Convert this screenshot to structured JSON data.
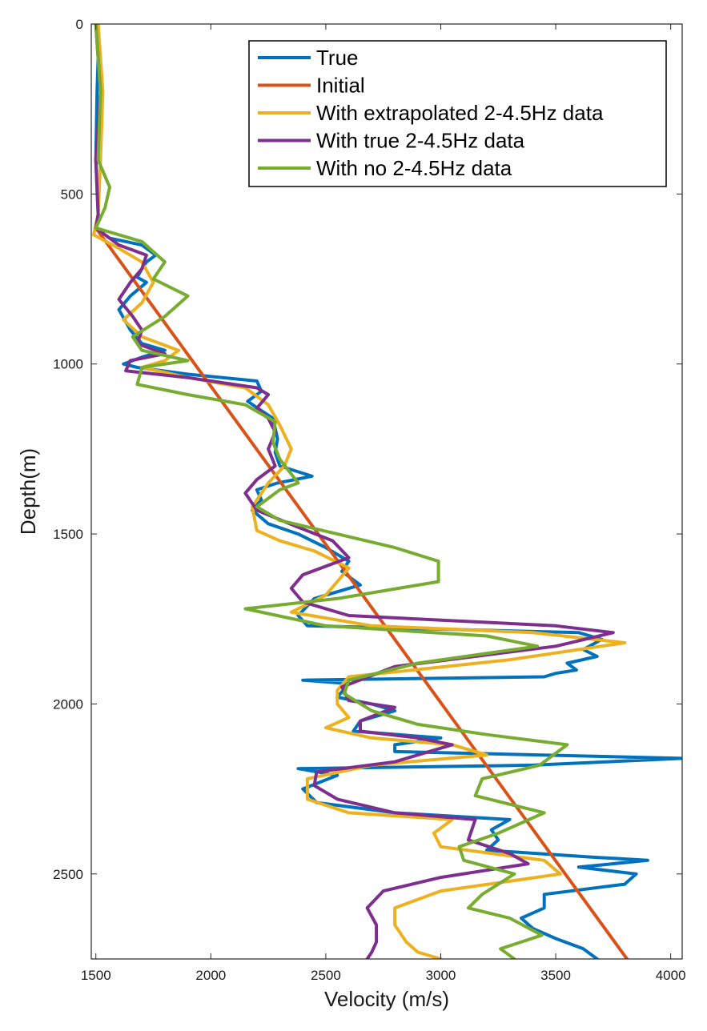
{
  "chart_data": {
    "type": "line",
    "title": "",
    "xlabel": "Velocity (m/s)",
    "ylabel": "Depth(m)",
    "xlim": [
      1480,
      4050
    ],
    "ylim": [
      0,
      2750
    ],
    "y_reversed": true,
    "x_ticks": [
      1500,
      2000,
      2500,
      3000,
      3500,
      4000
    ],
    "y_ticks": [
      0,
      500,
      1000,
      1500,
      2000,
      2500
    ],
    "grid": false,
    "legend_position": "top-right",
    "series": [
      {
        "name": "True",
        "color": "#0072BD",
        "points": [
          [
            1500,
            0
          ],
          [
            1510,
            100
          ],
          [
            1505,
            200
          ],
          [
            1500,
            400
          ],
          [
            1510,
            560
          ],
          [
            1500,
            600
          ],
          [
            1560,
            630
          ],
          [
            1700,
            650
          ],
          [
            1760,
            680
          ],
          [
            1720,
            700
          ],
          [
            1700,
            720
          ],
          [
            1680,
            745
          ],
          [
            1720,
            760
          ],
          [
            1650,
            800
          ],
          [
            1600,
            840
          ],
          [
            1650,
            900
          ],
          [
            1700,
            940
          ],
          [
            1800,
            960
          ],
          [
            1700,
            980
          ],
          [
            1620,
            1000
          ],
          [
            1680,
            1010
          ],
          [
            1900,
            1030
          ],
          [
            2200,
            1050
          ],
          [
            2220,
            1080
          ],
          [
            2160,
            1110
          ],
          [
            2270,
            1160
          ],
          [
            2290,
            1220
          ],
          [
            2280,
            1260
          ],
          [
            2300,
            1300
          ],
          [
            2440,
            1330
          ],
          [
            2290,
            1350
          ],
          [
            2200,
            1370
          ],
          [
            2220,
            1400
          ],
          [
            2180,
            1430
          ],
          [
            2250,
            1470
          ],
          [
            2380,
            1500
          ],
          [
            2500,
            1540
          ],
          [
            2600,
            1580
          ],
          [
            2570,
            1610
          ],
          [
            2650,
            1650
          ],
          [
            2450,
            1690
          ],
          [
            2380,
            1740
          ],
          [
            2420,
            1770
          ],
          [
            3600,
            1790
          ],
          [
            3700,
            1810
          ],
          [
            3620,
            1840
          ],
          [
            3680,
            1860
          ],
          [
            3550,
            1880
          ],
          [
            3590,
            1900
          ],
          [
            3500,
            1910
          ],
          [
            3450,
            1920
          ],
          [
            2400,
            1930
          ],
          [
            2600,
            1940
          ],
          [
            2550,
            1980
          ],
          [
            2700,
            2000
          ],
          [
            2800,
            2020
          ],
          [
            2650,
            2050
          ],
          [
            2620,
            2080
          ],
          [
            3000,
            2100
          ],
          [
            2800,
            2120
          ],
          [
            2800,
            2140
          ],
          [
            4050,
            2160
          ],
          [
            3400,
            2180
          ],
          [
            2380,
            2190
          ],
          [
            2550,
            2210
          ],
          [
            2400,
            2250
          ],
          [
            2460,
            2290
          ],
          [
            2800,
            2320
          ],
          [
            3050,
            2330
          ],
          [
            3300,
            2340
          ],
          [
            3220,
            2370
          ],
          [
            3250,
            2400
          ],
          [
            3200,
            2430
          ],
          [
            3650,
            2450
          ],
          [
            3900,
            2460
          ],
          [
            3600,
            2480
          ],
          [
            3850,
            2500
          ],
          [
            3800,
            2530
          ],
          [
            3450,
            2560
          ],
          [
            3450,
            2600
          ],
          [
            3350,
            2630
          ],
          [
            3400,
            2660
          ],
          [
            3500,
            2690
          ],
          [
            3620,
            2720
          ],
          [
            3680,
            2750
          ]
        ]
      },
      {
        "name": "Initial",
        "color": "#D95319",
        "points": [
          [
            1500,
            600
          ],
          [
            3810,
            2750
          ]
        ]
      },
      {
        "name": "With extrapolated 2-4.5Hz data",
        "color": "#EDB120",
        "points": [
          [
            1510,
            0
          ],
          [
            1530,
            200
          ],
          [
            1520,
            400
          ],
          [
            1510,
            560
          ],
          [
            1490,
            620
          ],
          [
            1600,
            660
          ],
          [
            1700,
            700
          ],
          [
            1750,
            760
          ],
          [
            1700,
            820
          ],
          [
            1620,
            870
          ],
          [
            1700,
            920
          ],
          [
            1860,
            960
          ],
          [
            1800,
            990
          ],
          [
            1700,
            1010
          ],
          [
            1900,
            1040
          ],
          [
            2150,
            1070
          ],
          [
            2250,
            1120
          ],
          [
            2300,
            1180
          ],
          [
            2350,
            1250
          ],
          [
            2320,
            1300
          ],
          [
            2250,
            1350
          ],
          [
            2180,
            1420
          ],
          [
            2200,
            1490
          ],
          [
            2300,
            1520
          ],
          [
            2450,
            1550
          ],
          [
            2600,
            1600
          ],
          [
            2500,
            1680
          ],
          [
            2350,
            1730
          ],
          [
            2700,
            1770
          ],
          [
            3400,
            1790
          ],
          [
            3800,
            1820
          ],
          [
            3300,
            1870
          ],
          [
            2600,
            1920
          ],
          [
            2550,
            1960
          ],
          [
            2550,
            2000
          ],
          [
            2600,
            2040
          ],
          [
            2500,
            2070
          ],
          [
            2700,
            2100
          ],
          [
            3050,
            2120
          ],
          [
            3200,
            2150
          ],
          [
            2700,
            2180
          ],
          [
            2420,
            2220
          ],
          [
            2420,
            2280
          ],
          [
            2600,
            2320
          ],
          [
            3050,
            2340
          ],
          [
            2970,
            2380
          ],
          [
            3000,
            2420
          ],
          [
            3450,
            2460
          ],
          [
            3520,
            2500
          ],
          [
            3000,
            2550
          ],
          [
            2800,
            2600
          ],
          [
            2800,
            2650
          ],
          [
            2850,
            2700
          ],
          [
            2900,
            2730
          ],
          [
            3000,
            2750
          ]
        ]
      },
      {
        "name": "With true 2-4.5Hz data",
        "color": "#7E2F8E",
        "points": [
          [
            1500,
            0
          ],
          [
            1520,
            200
          ],
          [
            1500,
            400
          ],
          [
            1510,
            560
          ],
          [
            1500,
            600
          ],
          [
            1600,
            650
          ],
          [
            1720,
            680
          ],
          [
            1700,
            720
          ],
          [
            1650,
            760
          ],
          [
            1600,
            810
          ],
          [
            1660,
            860
          ],
          [
            1700,
            900
          ],
          [
            1680,
            940
          ],
          [
            1800,
            970
          ],
          [
            1650,
            990
          ],
          [
            1630,
            1020
          ],
          [
            1900,
            1040
          ],
          [
            2200,
            1070
          ],
          [
            2250,
            1090
          ],
          [
            2200,
            1130
          ],
          [
            2250,
            1160
          ],
          [
            2280,
            1200
          ],
          [
            2250,
            1250
          ],
          [
            2280,
            1300
          ],
          [
            2200,
            1340
          ],
          [
            2150,
            1380
          ],
          [
            2200,
            1430
          ],
          [
            2380,
            1480
          ],
          [
            2530,
            1520
          ],
          [
            2600,
            1570
          ],
          [
            2400,
            1620
          ],
          [
            2350,
            1660
          ],
          [
            2400,
            1700
          ],
          [
            2600,
            1740
          ],
          [
            3500,
            1770
          ],
          [
            3750,
            1790
          ],
          [
            3500,
            1830
          ],
          [
            2800,
            1890
          ],
          [
            2570,
            1950
          ],
          [
            2600,
            1990
          ],
          [
            2800,
            2010
          ],
          [
            2650,
            2050
          ],
          [
            2650,
            2080
          ],
          [
            2900,
            2100
          ],
          [
            3050,
            2120
          ],
          [
            2800,
            2170
          ],
          [
            2460,
            2200
          ],
          [
            2450,
            2240
          ],
          [
            2550,
            2280
          ],
          [
            2800,
            2320
          ],
          [
            3150,
            2340
          ],
          [
            3120,
            2400
          ],
          [
            3300,
            2440
          ],
          [
            3380,
            2470
          ],
          [
            3000,
            2510
          ],
          [
            2750,
            2550
          ],
          [
            2680,
            2600
          ],
          [
            2720,
            2650
          ],
          [
            2720,
            2700
          ],
          [
            2700,
            2730
          ],
          [
            2680,
            2750
          ]
        ]
      },
      {
        "name": "With no 2-4.5Hz data",
        "color": "#77AC30",
        "points": [
          [
            1500,
            0
          ],
          [
            1520,
            200
          ],
          [
            1510,
            400
          ],
          [
            1560,
            480
          ],
          [
            1540,
            540
          ],
          [
            1500,
            600
          ],
          [
            1700,
            640
          ],
          [
            1800,
            700
          ],
          [
            1750,
            750
          ],
          [
            1900,
            800
          ],
          [
            1800,
            860
          ],
          [
            1660,
            920
          ],
          [
            1700,
            960
          ],
          [
            1900,
            990
          ],
          [
            1700,
            1010
          ],
          [
            1680,
            1060
          ],
          [
            1900,
            1090
          ],
          [
            2150,
            1120
          ],
          [
            2280,
            1170
          ],
          [
            2270,
            1230
          ],
          [
            2300,
            1280
          ],
          [
            2380,
            1350
          ],
          [
            2300,
            1370
          ],
          [
            2200,
            1420
          ],
          [
            2300,
            1460
          ],
          [
            2550,
            1500
          ],
          [
            2800,
            1540
          ],
          [
            2990,
            1580
          ],
          [
            2990,
            1640
          ],
          [
            2550,
            1690
          ],
          [
            2150,
            1720
          ],
          [
            2500,
            1770
          ],
          [
            3200,
            1800
          ],
          [
            3420,
            1830
          ],
          [
            2900,
            1880
          ],
          [
            2600,
            1930
          ],
          [
            2580,
            1970
          ],
          [
            2700,
            2020
          ],
          [
            2900,
            2060
          ],
          [
            3200,
            2090
          ],
          [
            3550,
            2120
          ],
          [
            3430,
            2180
          ],
          [
            3180,
            2220
          ],
          [
            3150,
            2270
          ],
          [
            3450,
            2320
          ],
          [
            3250,
            2380
          ],
          [
            3080,
            2420
          ],
          [
            3100,
            2460
          ],
          [
            3320,
            2500
          ],
          [
            3180,
            2560
          ],
          [
            3120,
            2600
          ],
          [
            3300,
            2630
          ],
          [
            3440,
            2680
          ],
          [
            3260,
            2720
          ],
          [
            3320,
            2750
          ]
        ]
      }
    ]
  }
}
